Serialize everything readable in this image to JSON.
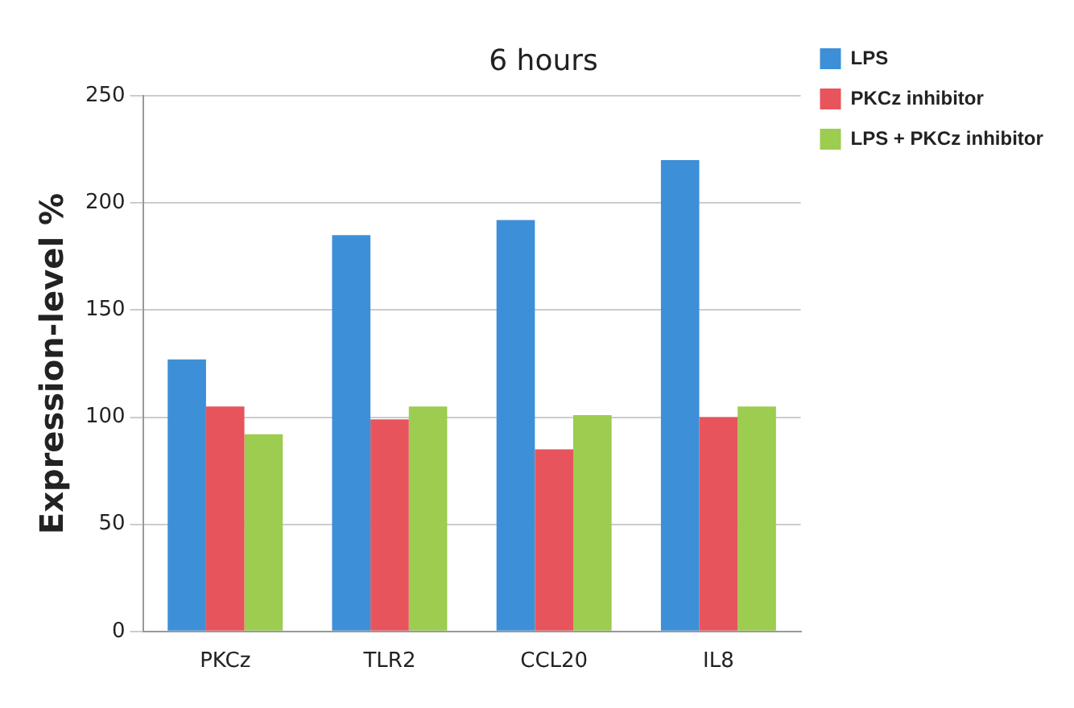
{
  "chart_data": {
    "type": "bar",
    "title": "6 hours",
    "ylabel": "Expression-level %",
    "categories": [
      "PKCz",
      "TLR2",
      "CCL20",
      "IL8"
    ],
    "series": [
      {
        "name": "LPS",
        "color": "#3d8fd8",
        "values": [
          127,
          185,
          192,
          220
        ]
      },
      {
        "name": "PKCz inhibitor",
        "color": "#e8545c",
        "values": [
          105,
          99,
          85,
          100
        ]
      },
      {
        "name": "LPS + PKCz inhibitor",
        "color": "#9ccc50",
        "values": [
          92,
          105,
          101,
          105
        ]
      }
    ],
    "ylim": [
      0,
      250
    ],
    "yticks": [
      0,
      50,
      100,
      150,
      200,
      250
    ],
    "grid": "y",
    "legend": "top right"
  }
}
